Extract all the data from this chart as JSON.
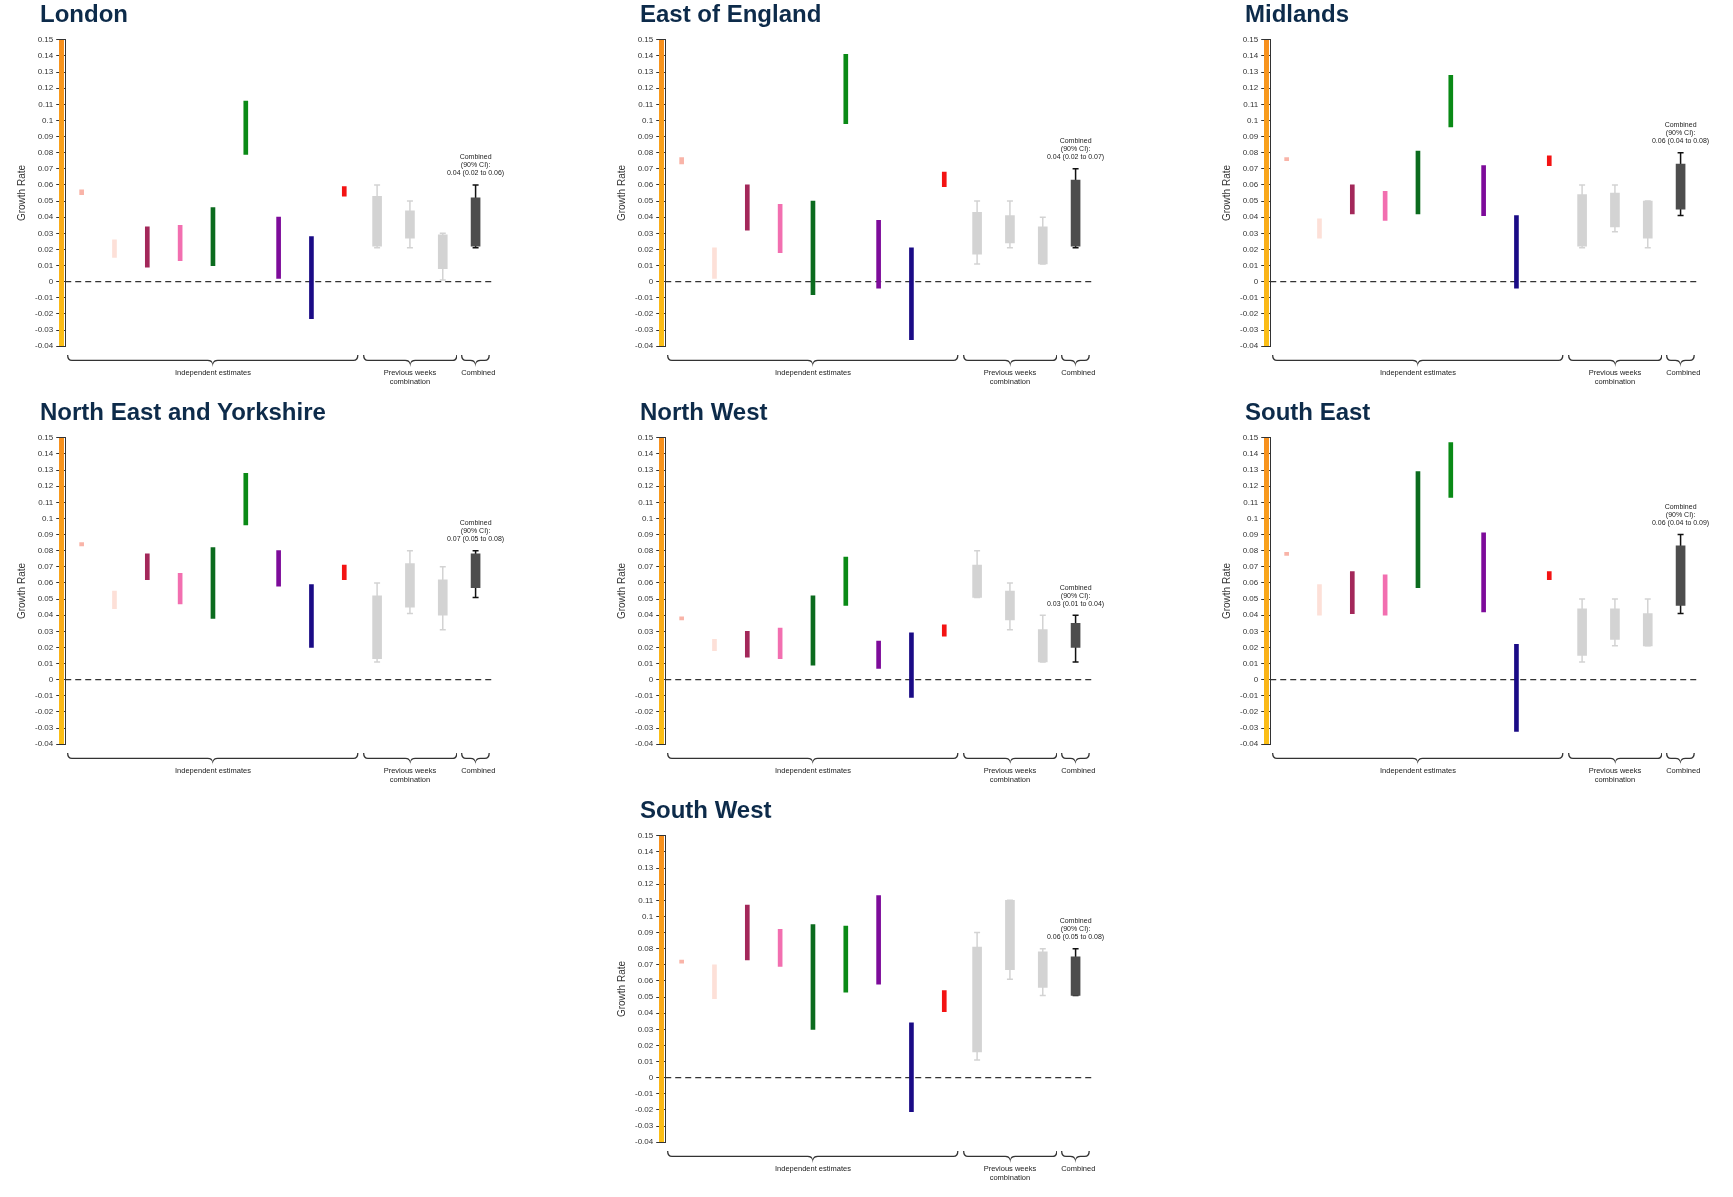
{
  "chart_data": [
    {
      "type": "bar",
      "title": "London",
      "ylabel": "Growth Rate",
      "categories": [
        null,
        null,
        null,
        null,
        null,
        null,
        null,
        null,
        null,
        null,
        null,
        null,
        null
      ],
      "base": [
        0.054,
        0.015,
        0.009,
        0.013,
        0.01,
        0.079,
        0.002,
        -0.023,
        0.053,
        0.022,
        0.027,
        0.008,
        0.022
      ],
      "values": [
        0.003,
        0.011,
        0.025,
        0.022,
        0.036,
        0.033,
        0.038,
        0.051,
        0.006,
        0.031,
        0.017,
        0.021,
        0.03
      ],
      "errors": [
        null,
        null,
        null,
        null,
        null,
        null,
        null,
        null,
        null,
        [
          0.021,
          0.06
        ],
        [
          0.021,
          0.05
        ],
        [
          0.001,
          0.03
        ],
        [
          0.021,
          0.06
        ]
      ],
      "colors": [
        "#f9b4a8",
        "#fde0d8",
        "#a3285a",
        "#f26fb0",
        "#0b6b1e",
        "#0a8a16",
        "#7d0b9a",
        "#1a0b86",
        "#f31313",
        "#d3d3d3",
        "#d3d3d3",
        "#d3d3d3",
        "#4d4d4d"
      ],
      "ylim": [
        -0.04,
        0.15
      ],
      "yticks": [
        -0.04,
        -0.03,
        -0.02,
        -0.01,
        0,
        0.01,
        0.02,
        0.03,
        0.04,
        0.05,
        0.06,
        0.07,
        0.08,
        0.09,
        0.1,
        0.11,
        0.12,
        0.13,
        0.14,
        0.15
      ],
      "ref_lines": [
        {
          "axis": "y",
          "value": 0,
          "color": "#333333",
          "line_style": "dashed"
        }
      ],
      "annotations": [
        "Independent estimates",
        "Previous weeks combination",
        "Combined",
        {
          "text": "Combined\n(90% CI):\n0.04 (0.02 to 0.06)",
          "y": 0.06
        }
      ],
      "grid": false,
      "legend": false,
      "tick_labels": "y"
    },
    {
      "type": "bar",
      "title": "East of England",
      "ylabel": "Growth Rate",
      "categories": [
        null,
        null,
        null,
        null,
        null,
        null,
        null,
        null,
        null,
        null,
        null,
        null,
        null
      ],
      "base": [
        0.073,
        0.002,
        0.032,
        0.018,
        -0.008,
        0.098,
        -0.004,
        -0.036,
        0.059,
        0.017,
        0.024,
        0.011,
        0.022
      ],
      "values": [
        0.004,
        0.019,
        0.028,
        0.03,
        0.058,
        0.043,
        0.042,
        0.057,
        0.009,
        0.026,
        0.017,
        0.023,
        0.041
      ],
      "errors": [
        null,
        null,
        null,
        null,
        null,
        null,
        null,
        null,
        null,
        [
          0.011,
          0.05
        ],
        [
          0.021,
          0.05
        ],
        [
          0.011,
          0.04
        ],
        [
          0.021,
          0.07
        ]
      ],
      "colors": [
        "#f9b4a8",
        "#fde0d8",
        "#a3285a",
        "#f26fb0",
        "#0b6b1e",
        "#0a8a16",
        "#7d0b9a",
        "#1a0b86",
        "#f31313",
        "#d3d3d3",
        "#d3d3d3",
        "#d3d3d3",
        "#4d4d4d"
      ],
      "ylim": [
        -0.04,
        0.15
      ],
      "yticks": [
        -0.04,
        -0.03,
        -0.02,
        -0.01,
        0,
        0.01,
        0.02,
        0.03,
        0.04,
        0.05,
        0.06,
        0.07,
        0.08,
        0.09,
        0.1,
        0.11,
        0.12,
        0.13,
        0.14,
        0.15
      ],
      "ref_lines": [
        {
          "axis": "y",
          "value": 0,
          "color": "#333333",
          "line_style": "dashed"
        }
      ],
      "annotations": [
        "Independent estimates",
        "Previous weeks combination",
        "Combined",
        {
          "text": "Combined\n(90% CI):\n0.04 (0.02 to 0.07)",
          "y": 0.07
        }
      ],
      "grid": false,
      "legend": false,
      "tick_labels": "y"
    },
    {
      "type": "bar",
      "title": "Midlands",
      "ylabel": "Growth Rate",
      "categories": [
        null,
        null,
        null,
        null,
        null,
        null,
        null,
        null,
        null,
        null,
        null,
        null,
        null
      ],
      "base": [
        0.075,
        0.027,
        0.042,
        0.038,
        0.042,
        0.096,
        0.041,
        -0.004,
        0.072,
        0.022,
        0.034,
        0.027,
        0.045
      ],
      "values": [
        0.002,
        0.012,
        0.018,
        0.018,
        0.039,
        0.032,
        0.031,
        0.045,
        0.006,
        0.032,
        0.021,
        0.023,
        0.028
      ],
      "errors": [
        null,
        null,
        null,
        null,
        null,
        null,
        null,
        null,
        null,
        [
          0.021,
          0.06
        ],
        [
          0.031,
          0.06
        ],
        [
          0.021,
          0.05
        ],
        [
          0.041,
          0.08
        ]
      ],
      "colors": [
        "#f9b4a8",
        "#fde0d8",
        "#a3285a",
        "#f26fb0",
        "#0b6b1e",
        "#0a8a16",
        "#7d0b9a",
        "#1a0b86",
        "#f31313",
        "#d3d3d3",
        "#d3d3d3",
        "#d3d3d3",
        "#4d4d4d"
      ],
      "ylim": [
        -0.04,
        0.15
      ],
      "yticks": [
        -0.04,
        -0.03,
        -0.02,
        -0.01,
        0,
        0.01,
        0.02,
        0.03,
        0.04,
        0.05,
        0.06,
        0.07,
        0.08,
        0.09,
        0.1,
        0.11,
        0.12,
        0.13,
        0.14,
        0.15
      ],
      "ref_lines": [
        {
          "axis": "y",
          "value": 0,
          "color": "#333333",
          "line_style": "dashed"
        }
      ],
      "annotations": [
        "Independent estimates",
        "Previous weeks combination",
        "Combined",
        {
          "text": "Combined\n(90% CI):\n0.06 (0.04 to 0.08)",
          "y": 0.08
        }
      ],
      "grid": false,
      "legend": false,
      "tick_labels": "y"
    },
    {
      "type": "bar",
      "title": "North East and Yorkshire",
      "ylabel": "Growth Rate",
      "categories": [
        null,
        null,
        null,
        null,
        null,
        null,
        null,
        null,
        null,
        null,
        null,
        null,
        null
      ],
      "base": [
        0.083,
        0.044,
        0.062,
        0.047,
        0.038,
        0.096,
        0.058,
        0.02,
        0.062,
        0.013,
        0.045,
        0.04,
        0.057
      ],
      "values": [
        0.002,
        0.011,
        0.016,
        0.019,
        0.044,
        0.032,
        0.022,
        0.039,
        0.009,
        0.039,
        0.027,
        0.022,
        0.021
      ],
      "errors": [
        null,
        null,
        null,
        null,
        null,
        null,
        null,
        null,
        null,
        [
          0.011,
          0.06
        ],
        [
          0.041,
          0.08
        ],
        [
          0.031,
          0.07
        ],
        [
          0.051,
          0.08
        ]
      ],
      "colors": [
        "#f9b4a8",
        "#fde0d8",
        "#a3285a",
        "#f26fb0",
        "#0b6b1e",
        "#0a8a16",
        "#7d0b9a",
        "#1a0b86",
        "#f31313",
        "#d3d3d3",
        "#d3d3d3",
        "#d3d3d3",
        "#4d4d4d"
      ],
      "ylim": [
        -0.04,
        0.15
      ],
      "yticks": [
        -0.04,
        -0.03,
        -0.02,
        -0.01,
        0,
        0.01,
        0.02,
        0.03,
        0.04,
        0.05,
        0.06,
        0.07,
        0.08,
        0.09,
        0.1,
        0.11,
        0.12,
        0.13,
        0.14,
        0.15
      ],
      "ref_lines": [
        {
          "axis": "y",
          "value": 0,
          "color": "#333333",
          "line_style": "dashed"
        }
      ],
      "annotations": [
        "Independent estimates",
        "Previous weeks combination",
        "Combined",
        {
          "text": "Combined\n(90% CI):\n0.07 (0.05 to 0.08)",
          "y": 0.08
        }
      ],
      "grid": false,
      "legend": false,
      "tick_labels": "y"
    },
    {
      "type": "bar",
      "title": "North West",
      "ylabel": "Growth Rate",
      "categories": [
        null,
        null,
        null,
        null,
        null,
        null,
        null,
        null,
        null,
        null,
        null,
        null,
        null
      ],
      "base": [
        0.037,
        0.018,
        0.014,
        0.013,
        0.009,
        0.046,
        0.007,
        -0.011,
        0.027,
        0.051,
        0.037,
        0.011,
        0.02
      ],
      "values": [
        0.002,
        0.007,
        0.016,
        0.019,
        0.043,
        0.03,
        0.017,
        0.04,
        0.007,
        0.02,
        0.018,
        0.02,
        0.015
      ],
      "errors": [
        null,
        null,
        null,
        null,
        null,
        null,
        null,
        null,
        null,
        [
          0.051,
          0.08
        ],
        [
          0.031,
          0.06
        ],
        [
          0.011,
          0.04
        ],
        [
          0.011,
          0.04
        ]
      ],
      "colors": [
        "#f9b4a8",
        "#fde0d8",
        "#a3285a",
        "#f26fb0",
        "#0b6b1e",
        "#0a8a16",
        "#7d0b9a",
        "#1a0b86",
        "#f31313",
        "#d3d3d3",
        "#d3d3d3",
        "#d3d3d3",
        "#4d4d4d"
      ],
      "ylim": [
        -0.04,
        0.15
      ],
      "yticks": [
        -0.04,
        -0.03,
        -0.02,
        -0.01,
        0,
        0.01,
        0.02,
        0.03,
        0.04,
        0.05,
        0.06,
        0.07,
        0.08,
        0.09,
        0.1,
        0.11,
        0.12,
        0.13,
        0.14,
        0.15
      ],
      "ref_lines": [
        {
          "axis": "y",
          "value": 0,
          "color": "#333333",
          "line_style": "dashed"
        }
      ],
      "annotations": [
        "Independent estimates",
        "Previous weeks combination",
        "Combined",
        {
          "text": "Combined\n(90% CI):\n0.03 (0.01 to 0.04)",
          "y": 0.04
        }
      ],
      "grid": false,
      "legend": false,
      "tick_labels": "y"
    },
    {
      "type": "bar",
      "title": "South East",
      "ylabel": "Growth Rate",
      "categories": [
        null,
        null,
        null,
        null,
        null,
        null,
        null,
        null,
        null,
        null,
        null,
        null,
        null
      ],
      "base": [
        0.077,
        0.04,
        0.041,
        0.04,
        0.057,
        0.113,
        0.042,
        -0.032,
        0.062,
        0.015,
        0.025,
        0.021,
        0.046
      ],
      "values": [
        0.002,
        0.019,
        0.026,
        0.025,
        0.072,
        0.034,
        0.049,
        0.054,
        0.005,
        0.029,
        0.019,
        0.02,
        0.037
      ],
      "errors": [
        null,
        null,
        null,
        null,
        null,
        null,
        null,
        null,
        null,
        [
          0.011,
          0.05
        ],
        [
          0.021,
          0.05
        ],
        [
          0.021,
          0.05
        ],
        [
          0.041,
          0.09
        ]
      ],
      "colors": [
        "#f9b4a8",
        "#fde0d8",
        "#a3285a",
        "#f26fb0",
        "#0b6b1e",
        "#0a8a16",
        "#7d0b9a",
        "#1a0b86",
        "#f31313",
        "#d3d3d3",
        "#d3d3d3",
        "#d3d3d3",
        "#4d4d4d"
      ],
      "ylim": [
        -0.04,
        0.15
      ],
      "yticks": [
        -0.04,
        -0.03,
        -0.02,
        -0.01,
        0,
        0.01,
        0.02,
        0.03,
        0.04,
        0.05,
        0.06,
        0.07,
        0.08,
        0.09,
        0.1,
        0.11,
        0.12,
        0.13,
        0.14,
        0.15
      ],
      "ref_lines": [
        {
          "axis": "y",
          "value": 0,
          "color": "#333333",
          "line_style": "dashed"
        }
      ],
      "annotations": [
        "Independent estimates",
        "Previous weeks combination",
        "Combined",
        {
          "text": "Combined\n(90% CI):\n0.06 (0.04 to 0.09)",
          "y": 0.09
        }
      ],
      "grid": false,
      "legend": false,
      "tick_labels": "y"
    },
    {
      "type": "bar",
      "title": "South West",
      "ylabel": "Growth Rate",
      "categories": [
        null,
        null,
        null,
        null,
        null,
        null,
        null,
        null,
        null,
        null,
        null,
        null,
        null
      ],
      "base": [
        0.071,
        0.049,
        0.073,
        0.069,
        0.03,
        0.053,
        0.058,
        -0.021,
        0.041,
        0.016,
        0.067,
        0.056,
        0.051
      ],
      "values": [
        0.002,
        0.021,
        0.034,
        0.023,
        0.065,
        0.041,
        0.055,
        0.055,
        0.013,
        0.065,
        0.043,
        0.022,
        0.024
      ],
      "errors": [
        null,
        null,
        null,
        null,
        null,
        null,
        null,
        null,
        null,
        [
          0.011,
          0.09
        ],
        [
          0.061,
          0.11
        ],
        [
          0.051,
          0.08
        ],
        [
          0.051,
          0.08
        ]
      ],
      "colors": [
        "#f9b4a8",
        "#fde0d8",
        "#a3285a",
        "#f26fb0",
        "#0b6b1e",
        "#0a8a16",
        "#7d0b9a",
        "#1a0b86",
        "#f31313",
        "#d3d3d3",
        "#d3d3d3",
        "#d3d3d3",
        "#4d4d4d"
      ],
      "ylim": [
        -0.04,
        0.15
      ],
      "yticks": [
        -0.04,
        -0.03,
        -0.02,
        -0.01,
        0,
        0.01,
        0.02,
        0.03,
        0.04,
        0.05,
        0.06,
        0.07,
        0.08,
        0.09,
        0.1,
        0.11,
        0.12,
        0.13,
        0.14,
        0.15
      ],
      "ref_lines": [
        {
          "axis": "y",
          "value": 0,
          "color": "#333333",
          "line_style": "dashed"
        }
      ],
      "annotations": [
        "Independent estimates",
        "Previous weeks combination",
        "Combined",
        {
          "text": "Combined\n(90% CI):\n0.06 (0.05 to 0.08)",
          "y": 0.08
        }
      ],
      "grid": false,
      "legend": false,
      "tick_labels": "y"
    }
  ]
}
